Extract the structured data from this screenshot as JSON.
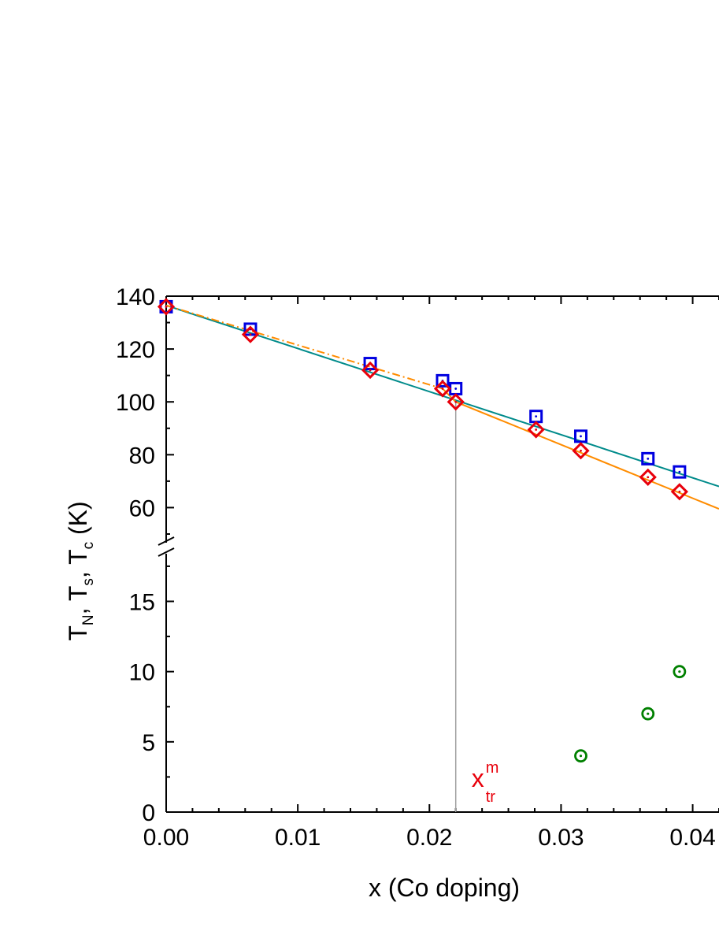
{
  "chart_data": {
    "type": "scatter",
    "xlabel": "x (Co doping)",
    "ylabel": {
      "parts": [
        "T",
        "N",
        ", T",
        "s",
        ", T",
        "c",
        " (K)"
      ]
    },
    "xlim": [
      0.0,
      0.042
    ],
    "x_ticks": [
      0.0,
      0.01,
      0.02,
      0.03,
      0.04
    ],
    "x_tick_labels": [
      "0.00",
      "0.01",
      "0.02",
      "0.03",
      "0.04"
    ],
    "y_break": true,
    "y_upper": {
      "range": [
        50,
        140
      ],
      "ticks": [
        60,
        80,
        100,
        120,
        140
      ],
      "tick_labels": [
        "60",
        "80",
        "100",
        "120",
        "140"
      ]
    },
    "y_lower": {
      "range": [
        0,
        18
      ],
      "ticks": [
        0,
        5,
        10,
        15
      ],
      "tick_labels": [
        "0",
        "5",
        "10",
        "15"
      ]
    },
    "annotation": {
      "main": "x",
      "sup": "m",
      "sub": "tr",
      "x": 0.022,
      "color": "#e8000b"
    },
    "series": [
      {
        "marker": "square",
        "color": "#0000e0",
        "panel": "upper",
        "x": [
          0.0,
          0.0064,
          0.0155,
          0.021,
          0.022,
          0.0281,
          0.0315,
          0.0366,
          0.039
        ],
        "y": [
          136,
          127.5,
          114.5,
          108,
          105,
          94.5,
          87,
          78.5,
          73.5
        ]
      },
      {
        "marker": "diamond",
        "color": "#e8000b",
        "panel": "upper",
        "x": [
          0.0,
          0.0064,
          0.0155,
          0.021,
          0.022,
          0.0281,
          0.0315,
          0.0366,
          0.039
        ],
        "y": [
          136,
          125.5,
          112,
          105,
          100,
          89.5,
          81.5,
          71.5,
          66
        ]
      },
      {
        "marker": "circle",
        "color": "#008000",
        "panel": "lower",
        "x": [
          0.0315,
          0.0366,
          0.039
        ],
        "y": [
          4,
          7,
          10
        ]
      }
    ],
    "lines": [
      {
        "color": "#008b8b",
        "style": "solid",
        "panel": "upper",
        "x": [
          0.0,
          0.042
        ],
        "y": [
          136.5,
          68
        ]
      },
      {
        "color": "#ff8c00",
        "style": "dash-dot",
        "panel": "upper",
        "x": [
          0.0,
          0.021
        ],
        "y": [
          136.5,
          105
        ]
      },
      {
        "color": "#ff8c00",
        "style": "solid",
        "panel": "upper",
        "x": [
          0.021,
          0.022,
          0.042
        ],
        "y": [
          105,
          100,
          59.5
        ]
      }
    ]
  }
}
